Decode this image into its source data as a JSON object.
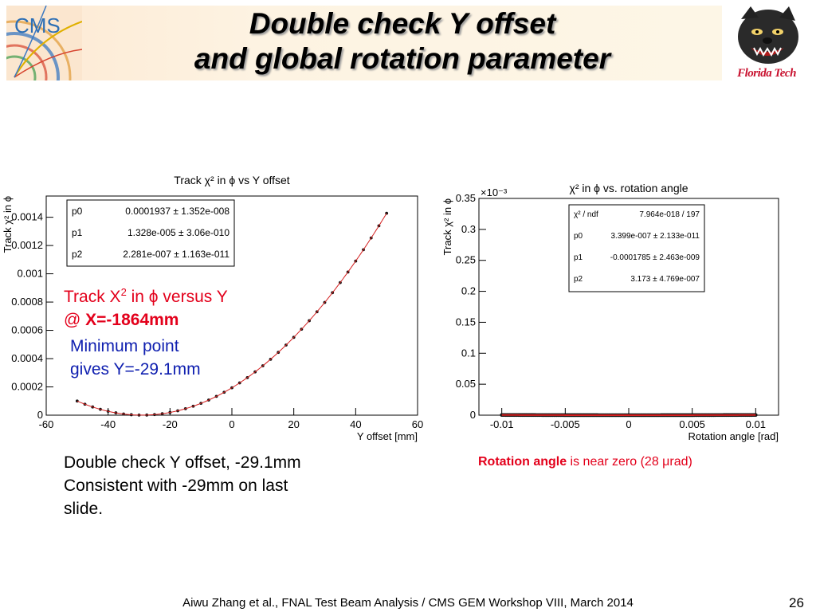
{
  "header": {
    "title_line1": "Double check Y offset",
    "title_line2": "and global rotation parameter",
    "cms_logo_text": "CMS",
    "ft_logo_text": "Florida Tech"
  },
  "chart_data": [
    {
      "type": "line",
      "title": "Track χ² in ϕ vs Y offset",
      "xlabel": "Y offset [mm]",
      "ylabel": "Track χ² in ϕ",
      "xlim": [
        -60,
        60
      ],
      "ylim": [
        0,
        0.00155
      ],
      "xticks": [
        -60,
        -40,
        -20,
        0,
        20,
        40,
        60
      ],
      "yticks": [
        0,
        0.0002,
        0.0004,
        0.0006,
        0.0008,
        0.001,
        0.0012,
        0.0014
      ],
      "ytick_labels": [
        "0",
        "0.0002",
        "0.0004",
        "0.0006",
        "0.0008",
        "0.001",
        "0.0012",
        "0.0014"
      ],
      "fit": {
        "p0": 0.0001937,
        "p1": 1.328e-05,
        "p2": 2.281e-07
      },
      "x_range": [
        -50,
        50
      ],
      "points": 41,
      "stats": [
        {
          "name": "p0",
          "value": "0.0001937 ± 1.352e-008"
        },
        {
          "name": "p1",
          "value": "1.328e-005 ± 3.06e-010"
        },
        {
          "name": "p2",
          "value": "2.281e-007 ± 1.163e-011"
        }
      ],
      "series_color": "#d42020"
    },
    {
      "type": "line",
      "title": "χ² in ϕ vs. rotation angle",
      "xlabel": "Rotation angle [rad]",
      "ylabel": "Track χ² in ϕ",
      "y_multiplier": "×10⁻³",
      "xlim": [
        -0.0118,
        0.0118
      ],
      "ylim": [
        0,
        0.35
      ],
      "xticks": [
        -0.01,
        -0.005,
        0,
        0.005,
        0.01
      ],
      "xtick_labels": [
        "-0.01",
        "-0.005",
        "0",
        "0.005",
        "0.01"
      ],
      "yticks": [
        0,
        0.05,
        0.1,
        0.15,
        0.2,
        0.25,
        0.3,
        0.35
      ],
      "ytick_labels": [
        "0",
        "0.05",
        "0.1",
        "0.15",
        "0.2",
        "0.25",
        "0.3",
        "0.35"
      ],
      "fit": {
        "p0": 3.399e-07,
        "p1": -0.0001785,
        "p2": 3.173
      },
      "x_range": [
        -0.01,
        0.01
      ],
      "points": 200,
      "stats": [
        {
          "name": "χ² / ndf",
          "value": "7.964e-018 / 197"
        },
        {
          "name": "p0",
          "value": "3.399e-007 ± 2.133e-011"
        },
        {
          "name": "p1",
          "value": "-0.0001785 ± 2.463e-009"
        },
        {
          "name": "p2",
          "value": "3.173 ± 4.769e-007"
        }
      ],
      "series_color": "#d42020"
    }
  ],
  "overlay": {
    "track_line1_pre": "Track X",
    "track_line1_sup": "2",
    "track_line1_post": " in ϕ versus Y",
    "track_line2_pre": "@ ",
    "track_line2_bold": "X=-1864mm",
    "min_line1": "Minimum point",
    "min_line2": "gives Y=-29.1mm"
  },
  "body": {
    "line1": "Double check Y offset, -29.1mm",
    "line2": "Consistent with -29mm on last",
    "line3": "slide."
  },
  "rotation_caption": {
    "bold": "Rotation angle",
    "rest": " is near zero (28 μrad)"
  },
  "footer": {
    "text": "Aiwu Zhang et al., FNAL Test Beam Analysis / CMS GEM Workshop VIII, March 2014",
    "page": "26"
  }
}
